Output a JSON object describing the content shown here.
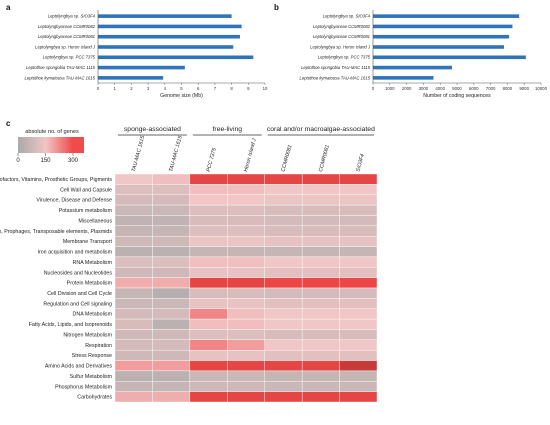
{
  "panels": {
    "a": "a",
    "b": "b",
    "c": "c"
  },
  "chart_data": [
    {
      "type": "bar",
      "orientation": "horizontal",
      "categories": [
        "Leptolyngbya sp. SIO3F4",
        "Leptolyngbyaceae CCMR0082",
        "Leptolyngbyaceae CCMR0081",
        "Leptolyngbya sp. Heron Island J",
        "Leptolyngbya sp. PCC 7375",
        "Leptothoe spongobia TAU-MAC 1115",
        "Leptothoe kymatousa TAU-MAC 1615"
      ],
      "values": [
        8.0,
        8.6,
        8.5,
        8.1,
        9.3,
        5.2,
        3.9
      ],
      "xlabel": "Genome size (Mb)",
      "xlim": [
        0,
        10
      ],
      "xticks": [
        "0",
        "1",
        "2",
        "3",
        "4",
        "5",
        "6",
        "7",
        "8",
        "9",
        "10"
      ],
      "color": "#2f74bb"
    },
    {
      "type": "bar",
      "orientation": "horizontal",
      "categories": [
        "Leptolyngbya sp. SIO3F4",
        "Leptolyngbyaceae CCMR0082",
        "Leptolyngbyaceae CCMR0081",
        "Leptolyngbya sp. Heron Island J",
        "Leptolyngbya sp. PCC 7375",
        "Leptothoe spongobia TAU-MAC 1115",
        "Leptothoe kymatousa TAU-MAC 1615"
      ],
      "values": [
        8700,
        8300,
        8100,
        7800,
        9100,
        4700,
        3600
      ],
      "xlabel": "Number of coding sequences",
      "xlim": [
        0,
        10000
      ],
      "xticks": [
        "0",
        "1000",
        "2000",
        "3000",
        "4000",
        "5000",
        "6000",
        "7000",
        "8000",
        "9000",
        "10000"
      ],
      "color": "#2f74bb"
    },
    {
      "type": "heatmap",
      "groups": [
        {
          "label": "sponge-associated",
          "span": 2
        },
        {
          "label": "free-living",
          "span": 2
        },
        {
          "label": "coral and/or macroalgae-associated",
          "span": 3
        }
      ],
      "columns": [
        "TAU-MAC 1615",
        "TAU-MAC 1615",
        "PCC 7375",
        "Heron Island J",
        "CCMR0081",
        "CCMR0081",
        "SIO3F4"
      ],
      "rows": [
        "Cofactors, Vitamins, Prosthetic Groups, Pigments",
        "Cell Wall and Capsule",
        "Virulence, Disease and Defense",
        "Potassium metabolism",
        "Miscellaneous",
        "Phages, Prophages, Transposable elements, Plasmids",
        "Membrane Transport",
        "Iron acquisition and metabolism",
        "RNA Metabolism",
        "Nucleosides and Nucleotides",
        "Protein Metabolism",
        "Cell Division and Cell Cycle",
        "Regulation and Cell signaling",
        "DNA Metabolism",
        "Fatty Acids, Lipids, and Isoprenoids",
        "Nitrogen Metabolism",
        "Respiration",
        "Stress Response",
        "Amino Acids and Derivatives",
        "Sulfur Metabolism",
        "Phosphorus Metabolism",
        "Carbohydrates"
      ],
      "values": [
        [
          150,
          160,
          320,
          320,
          320,
          320,
          320
        ],
        [
          110,
          110,
          160,
          160,
          150,
          150,
          150
        ],
        [
          90,
          90,
          150,
          150,
          140,
          140,
          140
        ],
        [
          70,
          70,
          110,
          110,
          100,
          100,
          100
        ],
        [
          50,
          50,
          100,
          100,
          90,
          90,
          90
        ],
        [
          60,
          60,
          110,
          110,
          100,
          100,
          100
        ],
        [
          80,
          80,
          140,
          140,
          130,
          130,
          130
        ],
        [
          40,
          40,
          60,
          60,
          60,
          60,
          60
        ],
        [
          110,
          110,
          160,
          160,
          150,
          150,
          150
        ],
        [
          80,
          80,
          130,
          130,
          120,
          120,
          120
        ],
        [
          180,
          180,
          320,
          320,
          310,
          310,
          310
        ],
        [
          60,
          30,
          100,
          100,
          90,
          90,
          90
        ],
        [
          70,
          70,
          130,
          130,
          120,
          120,
          120
        ],
        [
          90,
          90,
          230,
          160,
          150,
          150,
          150
        ],
        [
          100,
          40,
          160,
          160,
          150,
          150,
          150
        ],
        [
          80,
          80,
          110,
          110,
          100,
          100,
          100
        ],
        [
          90,
          90,
          230,
          200,
          150,
          150,
          150
        ],
        [
          80,
          80,
          130,
          130,
          120,
          120,
          120
        ],
        [
          200,
          200,
          320,
          320,
          320,
          320,
          360
        ],
        [
          40,
          40,
          70,
          70,
          60,
          60,
          60
        ],
        [
          60,
          60,
          80,
          80,
          70,
          70,
          70
        ],
        [
          180,
          180,
          320,
          320,
          320,
          320,
          320
        ]
      ],
      "legend": {
        "title": "absolute no. of genes",
        "ticks": [
          "0",
          "150",
          "300"
        ],
        "min": 0,
        "max": 360
      },
      "colors": {
        "low": "#a9a9a9",
        "mid": "#f0c6c6",
        "high": "#f24a4a",
        "max": "#c73a3a"
      }
    }
  ]
}
